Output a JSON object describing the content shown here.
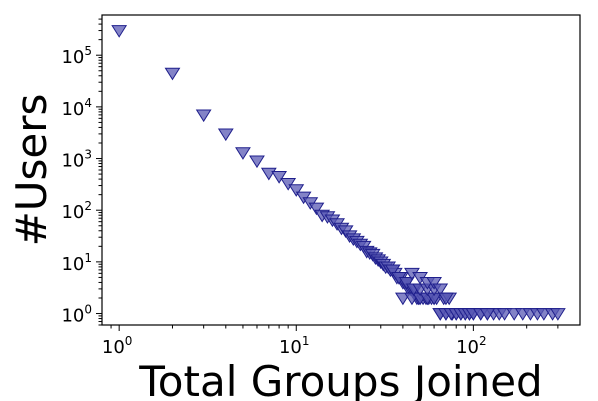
{
  "chart_data": {
    "type": "scatter",
    "title": "",
    "xlabel": "Total Groups Joined",
    "ylabel": "#Users",
    "x_scale": "log",
    "y_scale": "log",
    "xlim": [
      0.8,
      400
    ],
    "ylim": [
      0.6,
      600000
    ],
    "x_ticks": [
      {
        "value": 1,
        "base": "10",
        "exp": "0"
      },
      {
        "value": 10,
        "base": "10",
        "exp": "1"
      },
      {
        "value": 100,
        "base": "10",
        "exp": "2"
      }
    ],
    "y_ticks": [
      {
        "value": 1,
        "base": "10",
        "exp": "0"
      },
      {
        "value": 10,
        "base": "10",
        "exp": "1"
      },
      {
        "value": 100,
        "base": "10",
        "exp": "2"
      },
      {
        "value": 1000,
        "base": "10",
        "exp": "3"
      },
      {
        "value": 10000,
        "base": "10",
        "exp": "4"
      },
      {
        "value": 100000,
        "base": "10",
        "exp": "5"
      }
    ],
    "grid": false,
    "legend": "none",
    "marker": "triangle-down",
    "marker_color": "#5a5ab4",
    "marker_edge_color": "#1f1f8c",
    "x": [
      1,
      2,
      3,
      4,
      5,
      6,
      7,
      8,
      9,
      10,
      11,
      12,
      13,
      14,
      15,
      16,
      17,
      18,
      19,
      20,
      21,
      22,
      23,
      24,
      25,
      26,
      27,
      28,
      29,
      30,
      31,
      32,
      33,
      34,
      35,
      36,
      37,
      38,
      39,
      40,
      41,
      42,
      43,
      44,
      45,
      46,
      47,
      48,
      49,
      50,
      52,
      54,
      56,
      58,
      60,
      62,
      65,
      68,
      70,
      73,
      76,
      80,
      85,
      90,
      95,
      100,
      110,
      120,
      130,
      140,
      150,
      170,
      190,
      210,
      230,
      250,
      280,
      300,
      40,
      45,
      50,
      55,
      60,
      65,
      70,
      75,
      80,
      85,
      90,
      95,
      100,
      110,
      120,
      35,
      38,
      42,
      46,
      50,
      55,
      60,
      45,
      50,
      55,
      60,
      65,
      70
    ],
    "y": [
      300000,
      45000,
      7000,
      3000,
      1300,
      900,
      520,
      450,
      330,
      250,
      180,
      140,
      110,
      80,
      75,
      65,
      55,
      45,
      40,
      32,
      28,
      25,
      22,
      20,
      16,
      15,
      14,
      12,
      11,
      10,
      9,
      8,
      8,
      7,
      7,
      6,
      5,
      5,
      5,
      4,
      4,
      4,
      3,
      3,
      3,
      3,
      3,
      2,
      2,
      2,
      2,
      2,
      2,
      2,
      2,
      2,
      1,
      2,
      1,
      2,
      1,
      1,
      1,
      1,
      1,
      1,
      1,
      1,
      1,
      1,
      1,
      1,
      1,
      1,
      1,
      1,
      1,
      1,
      2,
      2,
      2,
      2,
      2,
      1,
      1,
      1,
      1,
      1,
      1,
      1,
      1,
      1,
      1,
      7,
      5,
      4,
      3,
      3,
      3,
      3,
      6,
      5,
      4,
      4,
      3,
      2
    ]
  }
}
